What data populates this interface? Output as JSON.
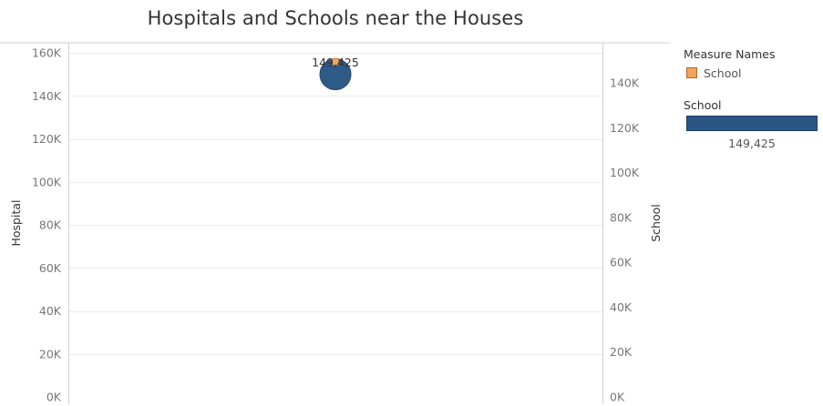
{
  "colors": {
    "school": "#f1a45c",
    "hospital_circle": "#2e5a87",
    "size_bar": "#2b5584",
    "gridline": "#ececec",
    "axis": "#d0d0d0",
    "tick_text": "#777777"
  },
  "legend": {
    "title": "Measure Names",
    "items": [
      {
        "label": "School",
        "color": "#f1a45c"
      }
    ]
  },
  "size_legend": {
    "title": "School",
    "value_label": "149,425"
  },
  "chart_data": {
    "type": "scatter",
    "title": "Hospitals and Schools near the Houses",
    "ylabel": "Hospital",
    "y2label": "School",
    "xlabel": "",
    "ylim": [
      0,
      160000
    ],
    "y2lim": [
      0,
      155000
    ],
    "y_ticks": [
      {
        "value": 0,
        "label": "0K"
      },
      {
        "value": 20000,
        "label": "20K"
      },
      {
        "value": 40000,
        "label": "40K"
      },
      {
        "value": 60000,
        "label": "60K"
      },
      {
        "value": 80000,
        "label": "80K"
      },
      {
        "value": 100000,
        "label": "100K"
      },
      {
        "value": 120000,
        "label": "120K"
      },
      {
        "value": 140000,
        "label": "140K"
      },
      {
        "value": 160000,
        "label": "160K"
      }
    ],
    "y2_ticks": [
      {
        "value": 0,
        "label": "0K"
      },
      {
        "value": 20000,
        "label": "20K"
      },
      {
        "value": 40000,
        "label": "40K"
      },
      {
        "value": 60000,
        "label": "60K"
      },
      {
        "value": 80000,
        "label": "80K"
      },
      {
        "value": 100000,
        "label": "100K"
      },
      {
        "value": 120000,
        "label": "120K"
      },
      {
        "value": 140000,
        "label": "140K"
      }
    ],
    "grid": true,
    "series": [
      {
        "name": "Hospital",
        "axis": "left",
        "mark": "circle",
        "values": [
          150000
        ]
      },
      {
        "name": "School",
        "axis": "right",
        "mark": "square",
        "values": [
          149425
        ],
        "data_label": "149,425"
      }
    ]
  }
}
